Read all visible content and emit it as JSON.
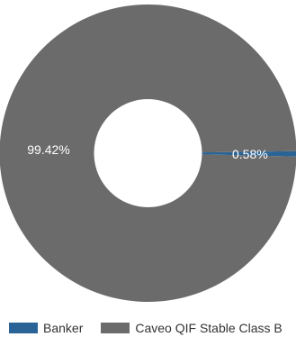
{
  "chart_data": {
    "type": "pie",
    "style": "donut",
    "title": "",
    "slices": [
      {
        "name": "Banker",
        "value": 0.58,
        "label": "0.58%",
        "color": "#2a6496"
      },
      {
        "name": "Caveo QIF Stable Class B",
        "value": 99.42,
        "label": "99.42%",
        "color": "#6b6b6b"
      }
    ],
    "legend_position": "bottom-left"
  }
}
